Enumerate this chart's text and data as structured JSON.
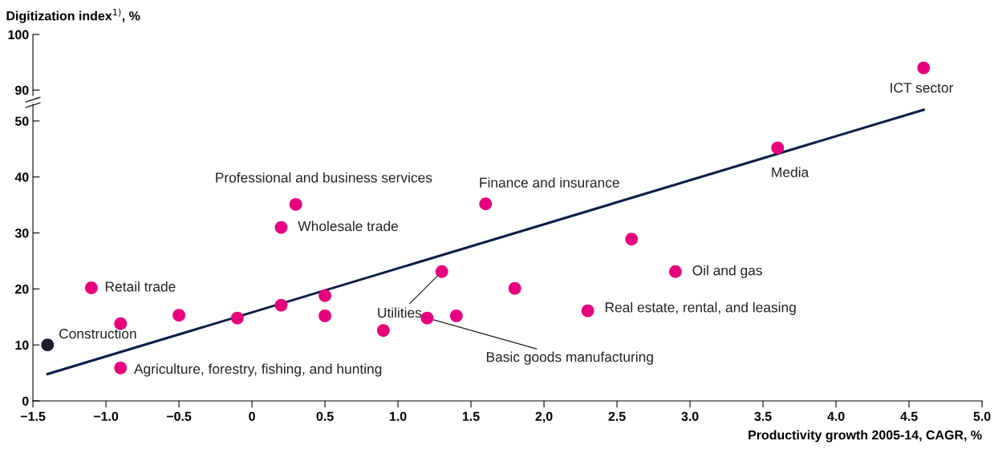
{
  "chart_data": [
    {
      "type": "scatter",
      "title": "Digitization index$^{1)}$, %",
      "tick_labels": "y",
      "legend": false,
      "grid": false,
      "marker": "circle",
      "xlim": [
        -1.5,
        5.0
      ],
      "ylim": [
        89,
        100
      ],
      "yticks": [
        90,
        100
      ],
      "x": [
        4.6
      ],
      "series": [
        {
          "color": "#e6007e",
          "values": [
            94
          ]
        }
      ],
      "annotations": [
        {
          "text": "ICT sector",
          "x": 4.6,
          "y": 94
        }
      ]
    },
    {
      "type": "scatter",
      "xlabel": "Productivity growth 2005-14, CAGR, %",
      "legend": false,
      "grid": false,
      "marker": "circle",
      "xlim": [
        -1.5,
        5.0
      ],
      "ylim": [
        0,
        53
      ],
      "yticks": [
        0,
        10,
        20,
        30,
        40,
        50
      ],
      "xticks": [
        {
          "value": -1.5,
          "label": "−1.5"
        },
        {
          "value": -1.0,
          "label": "−1.0"
        },
        {
          "value": -0.5,
          "label": "−0.5"
        },
        0,
        0.5,
        {
          "value": 1,
          "label": "1.0"
        },
        1.5,
        {
          "value": 2,
          "label": "2,0"
        },
        2.5,
        {
          "value": 3,
          "label": "3.0"
        },
        3.5,
        {
          "value": 4,
          "label": "4.0"
        },
        4.5,
        {
          "value": 5,
          "label": "5.0"
        }
      ],
      "series": [
        {
          "x": [
            -1.4,
            -1.1,
            -0.9,
            -0.9,
            -0.5,
            -0.1,
            0.2,
            0.2,
            0.3,
            0.5,
            0.5,
            0.9,
            1.2,
            1.3,
            1.4,
            1.6,
            1.8,
            2.3,
            2.6,
            2.9,
            3.6
          ],
          "values": [
            10,
            20.2,
            13.8,
            5.9,
            15.3,
            14.8,
            17.1,
            31,
            35.1,
            18.8,
            15.2,
            12.6,
            14.8,
            23.1,
            15.2,
            35.2,
            20.1,
            16.1,
            28.9,
            23.1,
            45.2
          ],
          "colors": [
            "#1c1f2a",
            "#e6007e",
            "#e6007e",
            "#e6007e",
            "#e6007e",
            "#e6007e",
            "#e6007e",
            "#e6007e",
            "#e6007e",
            "#e6007e",
            "#e6007e",
            "#e6007e",
            "#e6007e",
            "#e6007e",
            "#e6007e",
            "#e6007e",
            "#e6007e",
            "#e6007e",
            "#e6007e",
            "#e6007e",
            "#e6007e"
          ]
        },
        {
          "type": "line",
          "x": [
            -1.4,
            4.6
          ],
          "values": [
            4.8,
            52
          ],
          "color": "#0a1f44",
          "marker": "none"
        }
      ],
      "annotations": [
        {
          "text": "Construction",
          "x": -1.4,
          "y": 10
        },
        {
          "text": "Retail trade",
          "x": -1.1,
          "y": 20.2
        },
        {
          "text": "Agriculture, forestry, fishing, and hunting",
          "x": -0.9,
          "y": 5.9
        },
        {
          "text": "Wholesale trade",
          "x": 0.2,
          "y": 31
        },
        {
          "text": "Professional and business services",
          "x": 0.3,
          "y": 35.1
        },
        {
          "text": "Finance and insurance",
          "x": 1.6,
          "y": 35.2
        },
        {
          "text": "Utilities",
          "x": 1.3,
          "y": 23.1
        },
        {
          "text": "Basic goods manufacturing",
          "x": 1.2,
          "y": 14.8
        },
        {
          "text": "Real estate, rental, and leasing",
          "x": 2.3,
          "y": 16.1
        },
        {
          "text": "Oil and gas",
          "x": 2.9,
          "y": 23.1
        },
        {
          "text": "Media",
          "x": 3.6,
          "y": 45.2
        }
      ]
    }
  ]
}
